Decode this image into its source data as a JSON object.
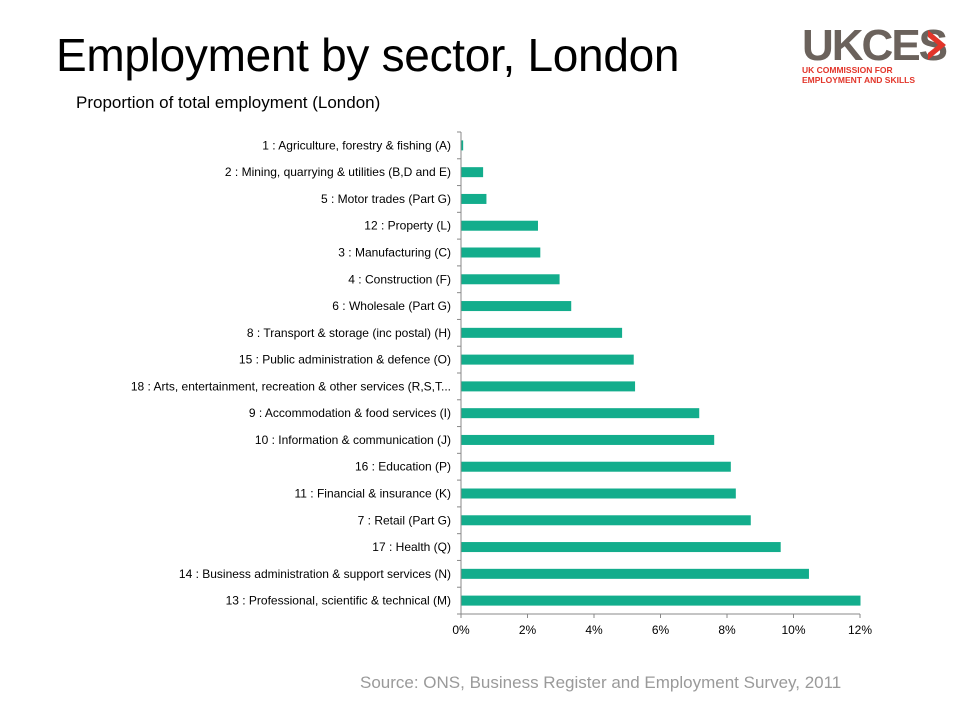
{
  "slide": {
    "title": "Employment by sector, London",
    "source": "Source: ONS, Business Register and Employment Survey,  2011"
  },
  "logo": {
    "wordmark": "UKCES",
    "tagline_line1": "UK COMMISSION FOR",
    "tagline_line2": "EMPLOYMENT AND SKILLS",
    "primary_color": "#6b625c",
    "accent_color": "#e2352a"
  },
  "chart_data": {
    "type": "bar",
    "orientation": "horizontal",
    "title": "Proportion of total employment (London)",
    "xlabel": "",
    "ylabel": "",
    "xlim": [
      0,
      12
    ],
    "xticks": [
      0,
      2,
      4,
      6,
      8,
      10,
      12
    ],
    "xtick_labels": [
      "0%",
      "2%",
      "4%",
      "6%",
      "8%",
      "10%",
      "12%"
    ],
    "grid": false,
    "legend": "none",
    "bar_color": "#13ad8c",
    "categories": [
      "1 : Agriculture, forestry & fishing (A)",
      "2 : Mining, quarrying & utilities (B,D and E)",
      "5 : Motor trades (Part G)",
      "12 : Property (L)",
      "3 : Manufacturing (C)",
      "4 : Construction (F)",
      "6 : Wholesale (Part G)",
      "8 : Transport & storage (inc postal) (H)",
      "15 : Public administration & defence (O)",
      "18 : Arts, entertainment, recreation & other services (R,S,T...",
      "9 : Accommodation & food services (I)",
      "10 : Information & communication (J)",
      "16 : Education (P)",
      "11 : Financial & insurance (K)",
      "7 : Retail (Part G)",
      "17 : Health (Q)",
      "14 : Business administration & support services (N)",
      "13 : Professional, scientific & technical (M)"
    ],
    "values": [
      0.05,
      0.65,
      0.75,
      2.3,
      2.37,
      2.95,
      3.3,
      4.83,
      5.18,
      5.22,
      7.15,
      7.6,
      8.1,
      8.25,
      8.7,
      9.6,
      10.45,
      12.0
    ]
  }
}
